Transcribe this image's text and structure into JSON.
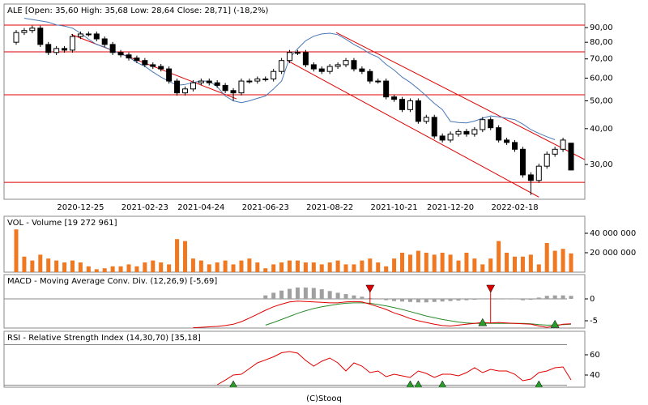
{
  "footer": "(C)Stooq",
  "chart_data": [
    {
      "type": "candlestick",
      "title": "ALE [Open: 35,60  High: 35,68  Low: 28,64  Close: 28,71] (-18,2%)",
      "categories": [
        null,
        null,
        null,
        null,
        null,
        null,
        null,
        null,
        "2020-12-25",
        null,
        null,
        null,
        null,
        null,
        null,
        null,
        "2021-02-23",
        null,
        null,
        null,
        null,
        null,
        null,
        "2021-04-24",
        null,
        null,
        null,
        null,
        null,
        null,
        null,
        "2021-06-23",
        null,
        null,
        null,
        null,
        null,
        null,
        null,
        "2021-08-22",
        null,
        null,
        null,
        null,
        null,
        null,
        null,
        "2021-10-21",
        null,
        null,
        null,
        null,
        null,
        null,
        "2021-12-20",
        null,
        null,
        null,
        null,
        null,
        null,
        null,
        "2022-02-18",
        null,
        null,
        null,
        null,
        null,
        null,
        null
      ],
      "open": [
        80.0,
        86.5,
        87.9,
        89.6,
        78.6,
        73.7,
        76.1,
        75.1,
        83.8,
        85.5,
        85.5,
        82.2,
        78.6,
        73.7,
        72.3,
        70.5,
        69.1,
        66.8,
        65.9,
        64.6,
        58.6,
        53.3,
        55.0,
        57.8,
        58.6,
        57.8,
        56.6,
        54.3,
        53.3,
        58.6,
        58.6,
        59.6,
        59.6,
        63.3,
        69.1,
        73.7,
        73.7,
        66.8,
        64.6,
        63.3,
        65.9,
        66.8,
        69.1,
        64.6,
        63.3,
        58.6,
        58.6,
        51.6,
        50.6,
        46.6,
        50.0,
        42.4,
        43.8,
        37.7,
        36.5,
        38.3,
        39.1,
        38.3,
        39.7,
        43.0,
        40.3,
        36.5,
        35.8,
        33.9,
        27.6,
        26.4,
        29.6,
        32.6,
        33.9,
        35.6
      ],
      "high": [
        88.2,
        89.7,
        91.4,
        91.4,
        80.2,
        77.6,
        77.6,
        85.5,
        87.2,
        87.2,
        87.2,
        83.8,
        80.2,
        75.2,
        73.7,
        71.9,
        70.5,
        68.1,
        67.2,
        65.9,
        59.8,
        56.1,
        59.0,
        59.8,
        59.8,
        59.0,
        57.7,
        55.4,
        59.8,
        59.8,
        60.8,
        60.8,
        64.6,
        70.5,
        75.2,
        75.2,
        75.2,
        68.1,
        65.9,
        67.2,
        68.1,
        70.5,
        70.5,
        65.9,
        64.6,
        59.8,
        59.8,
        52.6,
        51.6,
        51.0,
        51.0,
        44.7,
        44.7,
        38.5,
        39.1,
        39.9,
        39.9,
        40.5,
        43.9,
        43.9,
        41.1,
        37.2,
        36.5,
        34.6,
        28.2,
        30.2,
        33.3,
        34.6,
        37.2,
        35.68
      ],
      "low": [
        78.4,
        84.8,
        86.1,
        77.0,
        72.2,
        72.2,
        73.6,
        73.6,
        82.1,
        83.8,
        80.6,
        77.0,
        72.2,
        70.9,
        69.1,
        67.7,
        65.5,
        64.6,
        63.3,
        57.4,
        52.2,
        52.2,
        53.9,
        56.6,
        56.6,
        55.5,
        53.2,
        50.0,
        52.2,
        57.4,
        57.4,
        58.4,
        58.4,
        62.0,
        67.7,
        72.2,
        65.5,
        63.3,
        62.0,
        62.0,
        64.6,
        65.5,
        63.3,
        62.0,
        57.4,
        57.4,
        50.6,
        49.6,
        45.7,
        45.7,
        41.6,
        41.6,
        36.9,
        35.8,
        35.8,
        37.5,
        37.5,
        37.5,
        38.9,
        39.5,
        35.8,
        35.1,
        33.2,
        27.0,
        23.5,
        25.9,
        29.0,
        31.9,
        33.2,
        28.64
      ],
      "close": [
        86.5,
        87.9,
        89.6,
        78.6,
        73.7,
        76.1,
        75.1,
        83.8,
        85.5,
        85.5,
        82.2,
        78.6,
        73.7,
        72.3,
        70.5,
        69.1,
        66.8,
        65.9,
        64.6,
        58.6,
        53.3,
        55.0,
        57.8,
        58.6,
        57.8,
        56.6,
        54.3,
        53.3,
        58.6,
        58.6,
        59.6,
        59.6,
        63.3,
        69.1,
        73.7,
        73.7,
        66.8,
        64.6,
        63.3,
        65.9,
        66.8,
        69.1,
        64.6,
        63.3,
        58.6,
        58.6,
        51.6,
        50.6,
        46.6,
        50.0,
        42.4,
        43.8,
        37.7,
        36.5,
        38.3,
        39.1,
        38.3,
        39.7,
        43.0,
        40.3,
        36.5,
        35.8,
        33.9,
        27.6,
        26.4,
        29.6,
        32.6,
        33.9,
        36.5,
        28.71
      ],
      "up_color": "#ffffff",
      "down_color": "#000000",
      "ma": {
        "color": "#4a78b5",
        "values": [
          null,
          97,
          96,
          95,
          94,
          92,
          91,
          89.6,
          86,
          82,
          78.6,
          77,
          75,
          73,
          71,
          68,
          66,
          63,
          60.5,
          58.5,
          56.6,
          57,
          58,
          58.6,
          58.6,
          56,
          52,
          50,
          49.3,
          50,
          51,
          52,
          55,
          58.6,
          70.5,
          76,
          81,
          84,
          85.5,
          86,
          85,
          82,
          78.6,
          76,
          73,
          71,
          67,
          64,
          60.5,
          58,
          55,
          52,
          49,
          46.6,
          42.4,
          42,
          41.9,
          42.5,
          43.5,
          44.3,
          44,
          43.5,
          43,
          41.5,
          39.7,
          38.5,
          37.5,
          36.6,
          null,
          null
        ]
      },
      "log": true,
      "ylim": [
        22.7,
        108.7
      ],
      "yticks": [
        {
          "value": 90,
          "label": "90,00"
        },
        {
          "value": 80,
          "label": "80,00"
        },
        {
          "value": 70,
          "label": "70,00"
        },
        {
          "value": 60,
          "label": "60,00"
        },
        {
          "value": 50,
          "label": "50,00"
        },
        {
          "value": 40,
          "label": "40,00"
        },
        {
          "value": 30,
          "label": "30,00"
        }
      ],
      "levels": [
        91.8,
        74.1,
        52.5,
        26.0
      ],
      "level_color": "#e00000",
      "trend_lines": [
        {
          "x": [
            6.85,
            27.4
          ],
          "y": [
            85.2,
            50.8
          ]
        },
        {
          "x": [
            39.8,
            70.7
          ],
          "y": [
            86.5,
            31.2
          ]
        },
        {
          "x": [
            33.7,
            65
          ],
          "y": [
            69.1,
            23.1
          ]
        }
      ]
    },
    {
      "type": "bar",
      "title": "VOL - Volume [19 272 961]",
      "color": "#f07820",
      "values": [
        44000000,
        16000000,
        12000000,
        18000000,
        14000000,
        12000000,
        10000000,
        12000000,
        10000000,
        6000000,
        3000000,
        4000000,
        6000000,
        6000000,
        8000000,
        6000000,
        10000000,
        12000000,
        10000000,
        8000000,
        34000000,
        32000000,
        14000000,
        12000000,
        8000000,
        10000000,
        12000000,
        8000000,
        12000000,
        14000000,
        10000000,
        4000000,
        8000000,
        10000000,
        12000000,
        12000000,
        10000000,
        10000000,
        8000000,
        10000000,
        12000000,
        8000000,
        8000000,
        12000000,
        14000000,
        10000000,
        6000000,
        14000000,
        20000000,
        18000000,
        22000000,
        20000000,
        18000000,
        20000000,
        18000000,
        12000000,
        20000000,
        14000000,
        8000000,
        14000000,
        32000000,
        20000000,
        16000000,
        16000000,
        18000000,
        8000000,
        30000000,
        22000000,
        24000000,
        19272961
      ],
      "ylim": [
        0,
        57500000
      ],
      "yticks": [
        {
          "value": 40000000,
          "label": "40 000 000"
        },
        {
          "value": 20000000,
          "label": "20 000 000"
        }
      ]
    },
    {
      "type": "macd",
      "title": "MACD - Moving Average Conv. Div. (12,26,9) [-5,69]",
      "macd": {
        "color": "#e00000",
        "values": [
          null,
          null,
          null,
          null,
          null,
          null,
          null,
          null,
          null,
          null,
          null,
          null,
          null,
          null,
          null,
          null,
          null,
          null,
          null,
          null,
          null,
          null,
          -6.6,
          -6.5,
          -6.4,
          -6.3,
          -6.1,
          -5.8,
          -5.2,
          -4.4,
          -3.5,
          -2.6,
          -1.8,
          -1.2,
          -0.7,
          -0.5,
          -0.6,
          -0.7,
          -0.8,
          -0.9,
          -0.9,
          -0.7,
          -0.6,
          -0.7,
          -1.2,
          -1.8,
          -2.4,
          -3.2,
          -3.8,
          -4.5,
          -5.0,
          -5.4,
          -5.8,
          -6.1,
          -6.2,
          -6.0,
          -5.8,
          -5.6,
          -5.4,
          -5.5,
          -5.4,
          -5.5,
          -5.6,
          -5.7,
          -5.8,
          -6.2,
          -6.5,
          -6.2,
          -5.8,
          -5.69
        ]
      },
      "signal": {
        "color": "#2a8a2a",
        "values": [
          null,
          null,
          null,
          null,
          null,
          null,
          null,
          null,
          null,
          null,
          null,
          null,
          null,
          null,
          null,
          null,
          null,
          null,
          null,
          null,
          null,
          null,
          null,
          null,
          null,
          null,
          null,
          null,
          null,
          null,
          null,
          -6.0,
          -5.4,
          -4.7,
          -4.0,
          -3.3,
          -2.7,
          -2.2,
          -1.8,
          -1.5,
          -1.2,
          -1.0,
          -0.9,
          -0.9,
          -1.0,
          -1.3,
          -1.6,
          -2.0,
          -2.4,
          -2.9,
          -3.4,
          -3.9,
          -4.3,
          -4.7,
          -5.0,
          -5.3,
          -5.5,
          -5.6,
          -5.6,
          -5.6,
          -5.6,
          -5.6,
          -5.6,
          -5.6,
          -5.7,
          -5.9,
          -6.0,
          -6.0,
          -5.9,
          -5.8
        ]
      },
      "histogram": {
        "color": "#a0a0a0",
        "values": [
          null,
          null,
          null,
          null,
          null,
          null,
          null,
          null,
          null,
          null,
          null,
          null,
          null,
          null,
          null,
          null,
          null,
          null,
          null,
          null,
          null,
          null,
          null,
          null,
          null,
          null,
          null,
          null,
          null,
          null,
          null,
          0.8,
          1.4,
          1.9,
          2.3,
          2.6,
          2.6,
          2.5,
          2.2,
          1.8,
          1.4,
          1.1,
          0.8,
          0.5,
          0.2,
          -0.1,
          -0.3,
          -0.5,
          -0.6,
          -0.7,
          -0.8,
          -0.8,
          -0.7,
          -0.6,
          -0.5,
          -0.4,
          -0.3,
          -0.2,
          -0.1,
          0,
          0,
          0,
          -0.1,
          -0.3,
          -0.2,
          0.3,
          0.7,
          0.8,
          0.8,
          0.7
        ]
      },
      "sell_signals": [
        44,
        59
      ],
      "buy_signals": [
        58,
        67
      ],
      "levels": [
        0
      ],
      "ylim": [
        -6.67,
        5.56
      ],
      "yticks": [
        0,
        -5
      ]
    },
    {
      "type": "rsi",
      "title": "RSI - Relative Strength Index (14,30,70) [35,18]",
      "color": "#e00000",
      "values": [
        null,
        null,
        null,
        null,
        null,
        null,
        null,
        null,
        null,
        null,
        null,
        null,
        null,
        null,
        null,
        null,
        null,
        null,
        null,
        null,
        null,
        null,
        null,
        null,
        null,
        30.4,
        35,
        40.0,
        40.8,
        46.4,
        52,
        55,
        58,
        62,
        63.2,
        61.6,
        54.4,
        48.8,
        53.6,
        56.8,
        52,
        44,
        52,
        48.8,
        42.4,
        44,
        38.4,
        40.8,
        39.2,
        37.6,
        44,
        41.6,
        37.6,
        40.8,
        40.8,
        39.2,
        42.4,
        47.2,
        42.4,
        45.6,
        44,
        44,
        40.8,
        34.4,
        36,
        42.4,
        44,
        47.2,
        48,
        35.18
      ],
      "buy_signals": [
        27,
        49,
        50,
        53,
        65
      ],
      "levels": [
        70,
        30
      ],
      "ylim": [
        28,
        83.2
      ],
      "yticks": [
        60,
        40
      ]
    }
  ]
}
